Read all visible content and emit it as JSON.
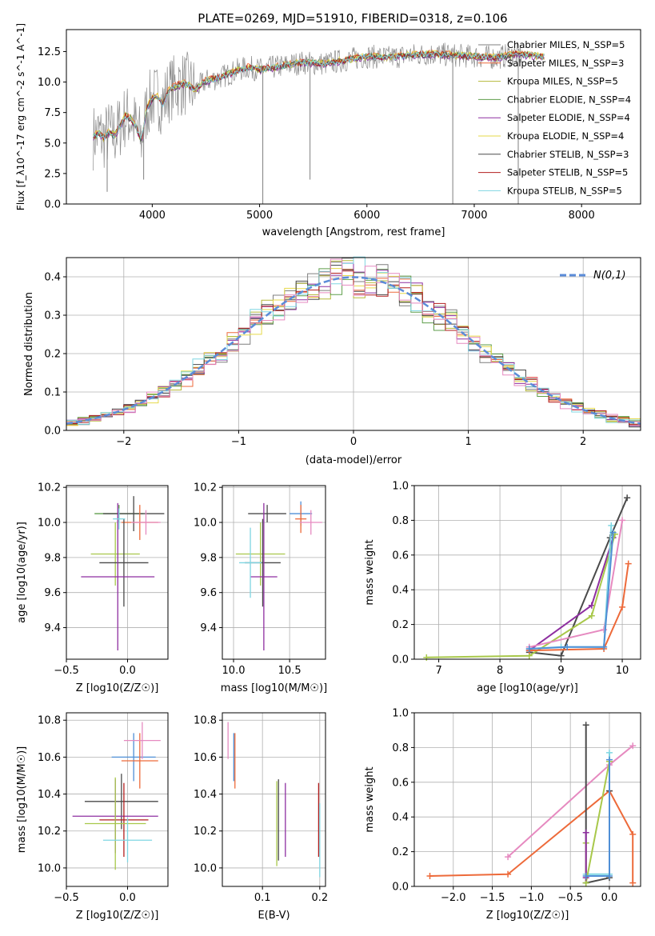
{
  "figure": {
    "title": "PLATE=0269, MJD=51910, FIBERID=0318, z=0.106",
    "colors": {
      "grey": "#7f7f7f",
      "orange": "#ed6a3a",
      "olive": "#b5b83a",
      "green": "#5f9e4b",
      "purple": "#8e2fa0",
      "yellow": "#e6d94a",
      "dark": "#4a4a4a",
      "red": "#b21e1e",
      "cyan": "#7fd6e2",
      "blue": "#4f8fd6",
      "pink": "#e68ac0",
      "lime": "#a8c84a",
      "model": "#5b8cd8",
      "grid": "#b0b0b0"
    }
  },
  "chart_data": [
    {
      "id": "spectrum",
      "type": "line",
      "xlabel": "wavelength [Angstrom, rest frame]",
      "ylabel": "Flux [f_λ10^-17 erg cm^-2 s^-1 A^-1]",
      "xlim": [
        3200,
        8550
      ],
      "ylim": [
        0,
        14.3
      ],
      "xticks": [
        4000,
        5000,
        6000,
        7000,
        8000
      ],
      "yticks": [
        0.0,
        2.5,
        5.0,
        7.5,
        10.0,
        12.5
      ],
      "legend_position": "upper-right",
      "continuum": {
        "x": [
          3450,
          3500,
          3550,
          3600,
          3650,
          3700,
          3750,
          3800,
          3850,
          3900,
          3950,
          4000,
          4050,
          4100,
          4150,
          4200,
          4300,
          4400,
          4500,
          4600,
          4700,
          4800,
          4900,
          5000,
          5200,
          5400,
          5600,
          5800,
          6000,
          6200,
          6400,
          6600,
          6800,
          7000,
          7200,
          7400,
          7600,
          7800,
          8000,
          8200
        ],
        "y": [
          5.5,
          5.8,
          5.4,
          5.9,
          5.6,
          6.4,
          7.2,
          7.0,
          6.3,
          5.2,
          7.9,
          8.6,
          8.8,
          8.2,
          9.3,
          9.6,
          9.9,
          9.4,
          10.1,
          10.3,
          10.6,
          11.0,
          11.2,
          11.0,
          11.3,
          11.6,
          11.5,
          11.8,
          12.1,
          12.0,
          12.2,
          12.3,
          12.2,
          12.1,
          12.0,
          12.3,
          12.1,
          12.0,
          11.8,
          11.6
        ]
      },
      "series": [
        {
          "name": "Chabrier MILES, N_SSP=5",
          "color": "#7f7f7f",
          "offset": 0.0
        },
        {
          "name": "Salpeter MILES, N_SSP=3",
          "color": "#ed6a3a",
          "offset": 0.1
        },
        {
          "name": "Kroupa MILES, N_SSP=5",
          "color": "#b5b83a",
          "offset": -0.05
        },
        {
          "name": "Chabrier ELODIE, N_SSP=4",
          "color": "#5f9e4b",
          "offset": 0.05
        },
        {
          "name": "Salpeter ELODIE, N_SSP=4",
          "color": "#8e2fa0",
          "offset": -0.1
        },
        {
          "name": "Kroupa ELODIE, N_SSP=4",
          "color": "#e6d94a",
          "offset": 0.08
        },
        {
          "name": "Chabrier STELIB, N_SSP=3",
          "color": "#4a4a4a",
          "offset": -0.02
        },
        {
          "name": "Salpeter STELIB, N_SSP=5",
          "color": "#b21e1e",
          "offset": 0.03
        },
        {
          "name": "Kroupa STELIB, N_SSP=5",
          "color": "#7fd6e2",
          "offset": 0.0
        }
      ]
    },
    {
      "id": "residuals",
      "type": "histogram",
      "xlabel": "(data-model)/error",
      "ylabel": "Normed distribution",
      "xlim": [
        -2.5,
        2.5
      ],
      "ylim": [
        0,
        0.45
      ],
      "xticks": [
        -2,
        -1,
        0,
        1,
        2
      ],
      "yticks": [
        0.0,
        0.1,
        0.2,
        0.3,
        0.4
      ],
      "model_label": "N(0,1)",
      "legend_position": "upper-right",
      "bin_width": 0.1
    },
    {
      "id": "Z_age",
      "type": "errorbar",
      "xlabel": "Z [log10(Z/Z☉)]",
      "ylabel": "age [log10(age/yr)]",
      "xlim": [
        -0.5,
        0.33
      ],
      "ylim": [
        9.22,
        10.21
      ],
      "xticks": [
        -0.5,
        0.0
      ],
      "yticks": [
        9.4,
        9.6,
        9.8,
        10.0,
        10.2
      ],
      "points": [
        {
          "x": -0.07,
          "y": 10.05,
          "xerr": 0.2,
          "yerr": 0.05,
          "color": "#5f9e4b"
        },
        {
          "x": 0.05,
          "y": 10.05,
          "xerr": 0.25,
          "yerr": 0.1,
          "color": "#4a4a4a"
        },
        {
          "x": 0.1,
          "y": 10.0,
          "xerr": 0.15,
          "yerr": 0.1,
          "color": "#ed6a3a"
        },
        {
          "x": 0.15,
          "y": 10.0,
          "xerr": 0.12,
          "yerr": 0.07,
          "color": "#e68ac0"
        },
        {
          "x": -0.1,
          "y": 9.82,
          "xerr": 0.2,
          "yerr": 0.18,
          "color": "#a8c84a"
        },
        {
          "x": -0.03,
          "y": 9.77,
          "xerr": 0.2,
          "yerr": 0.25,
          "color": "#4a4a4a"
        },
        {
          "x": -0.08,
          "y": 9.69,
          "xerr": 0.3,
          "yerr": 0.42,
          "color": "#8e2fa0"
        },
        {
          "x": -0.07,
          "y": 10.02,
          "xerr": 0.05,
          "yerr": 0.06,
          "color": "#7fd6e2"
        }
      ]
    },
    {
      "id": "mass_age",
      "type": "errorbar",
      "xlabel": "mass [log10(M/M☉)]",
      "ylabel": "",
      "xlim": [
        9.9,
        10.82
      ],
      "ylim": [
        9.22,
        10.21
      ],
      "xticks": [
        10.0,
        10.5
      ],
      "yticks": [
        9.4,
        9.6,
        9.8,
        10.0,
        10.2
      ],
      "points": [
        {
          "x": 10.3,
          "y": 10.05,
          "xerr": 0.17,
          "yerr": 0.05,
          "color": "#4a4a4a"
        },
        {
          "x": 10.6,
          "y": 10.05,
          "xerr": 0.1,
          "yerr": 0.07,
          "color": "#4f8fd6"
        },
        {
          "x": 10.6,
          "y": 10.02,
          "xerr": 0.05,
          "yerr": 0.08,
          "color": "#ed6a3a"
        },
        {
          "x": 10.69,
          "y": 10.0,
          "xerr": 0.1,
          "yerr": 0.07,
          "color": "#e68ac0"
        },
        {
          "x": 10.24,
          "y": 9.82,
          "xerr": 0.22,
          "yerr": 0.18,
          "color": "#a8c84a"
        },
        {
          "x": 10.26,
          "y": 9.77,
          "xerr": 0.16,
          "yerr": 0.25,
          "color": "#4a4a4a"
        },
        {
          "x": 10.27,
          "y": 9.69,
          "xerr": 0.12,
          "yerr": 0.42,
          "color": "#8e2fa0"
        },
        {
          "x": 10.15,
          "y": 9.77,
          "xerr": 0.1,
          "yerr": 0.2,
          "color": "#7fd6e2"
        }
      ]
    },
    {
      "id": "age_weight",
      "type": "line",
      "xlabel": "age [log10(age/yr)]",
      "ylabel": "mass weight",
      "xlim": [
        6.6,
        10.3
      ],
      "ylim": [
        0,
        1.0
      ],
      "xticks": [
        7,
        8,
        9,
        10
      ],
      "yticks": [
        0.0,
        0.2,
        0.4,
        0.6,
        0.8,
        1.0
      ],
      "series": [
        {
          "color": "#4a4a4a",
          "x": [
            8.48,
            9.0,
            9.8,
            10.08
          ],
          "y": [
            0.04,
            0.02,
            0.7,
            0.93
          ]
        },
        {
          "color": "#8e2fa0",
          "x": [
            8.48,
            9.5,
            9.85
          ],
          "y": [
            0.05,
            0.31,
            0.7
          ]
        },
        {
          "color": "#a8c84a",
          "x": [
            6.8,
            8.48,
            9.5,
            9.88
          ],
          "y": [
            0.01,
            0.02,
            0.25,
            0.72
          ]
        },
        {
          "color": "#e68ac0",
          "x": [
            8.48,
            9.7,
            10.0
          ],
          "y": [
            0.07,
            0.17,
            0.8
          ]
        },
        {
          "color": "#7fd6e2",
          "x": [
            8.48,
            9.0,
            9.7,
            9.82
          ],
          "y": [
            0.06,
            0.07,
            0.07,
            0.77
          ]
        },
        {
          "color": "#ed6a3a",
          "x": [
            8.48,
            9.7,
            10.0,
            10.1
          ],
          "y": [
            0.05,
            0.06,
            0.3,
            0.55
          ]
        },
        {
          "color": "#4f8fd6",
          "x": [
            8.48,
            9.1,
            9.7,
            9.85
          ],
          "y": [
            0.06,
            0.07,
            0.07,
            0.73
          ]
        }
      ]
    },
    {
      "id": "Z_mass",
      "type": "errorbar",
      "xlabel": "Z [log10(Z/Z☉)]",
      "ylabel": "mass [log10(M/M☉)]",
      "xlim": [
        -0.5,
        0.33
      ],
      "ylim": [
        9.9,
        10.84
      ],
      "xticks": [
        -0.5,
        0.0
      ],
      "yticks": [
        10.0,
        10.2,
        10.4,
        10.6,
        10.8
      ],
      "points": [
        {
          "x": 0.05,
          "y": 10.6,
          "xerr": 0.18,
          "yerr": 0.13,
          "color": "#4f8fd6"
        },
        {
          "x": 0.1,
          "y": 10.58,
          "xerr": 0.15,
          "yerr": 0.15,
          "color": "#ed6a3a"
        },
        {
          "x": 0.12,
          "y": 10.69,
          "xerr": 0.15,
          "yerr": 0.1,
          "color": "#e68ac0"
        },
        {
          "x": -0.05,
          "y": 10.36,
          "xerr": 0.3,
          "yerr": 0.15,
          "color": "#4a4a4a"
        },
        {
          "x": -0.1,
          "y": 10.28,
          "xerr": 0.35,
          "yerr": 0.2,
          "color": "#8e2fa0"
        },
        {
          "x": -0.03,
          "y": 10.26,
          "xerr": 0.2,
          "yerr": 0.2,
          "color": "#b21e1e"
        },
        {
          "x": -0.1,
          "y": 10.24,
          "xerr": 0.25,
          "yerr": 0.25,
          "color": "#a8c84a"
        },
        {
          "x": 0.0,
          "y": 10.15,
          "xerr": 0.2,
          "yerr": 0.12,
          "color": "#7fd6e2"
        }
      ]
    },
    {
      "id": "ebv_mass",
      "type": "errorbar",
      "xlabel": "E(B-V)",
      "ylabel": "",
      "xlim": [
        0.03,
        0.21
      ],
      "ylim": [
        9.9,
        10.84
      ],
      "xticks": [
        0.1,
        0.2
      ],
      "yticks": [
        10.0,
        10.2,
        10.4,
        10.6,
        10.8
      ],
      "points": [
        {
          "x": 0.04,
          "y": 10.69,
          "xerr": 0,
          "yerr": 0.1,
          "color": "#e68ac0"
        },
        {
          "x": 0.05,
          "y": 10.6,
          "xerr": 0,
          "yerr": 0.13,
          "color": "#4f8fd6"
        },
        {
          "x": 0.052,
          "y": 10.58,
          "xerr": 0,
          "yerr": 0.15,
          "color": "#ed6a3a"
        },
        {
          "x": 0.125,
          "y": 10.24,
          "xerr": 0,
          "yerr": 0.23,
          "color": "#a8c84a"
        },
        {
          "x": 0.128,
          "y": 10.26,
          "xerr": 0,
          "yerr": 0.22,
          "color": "#4a4a4a"
        },
        {
          "x": 0.14,
          "y": 10.26,
          "xerr": 0,
          "yerr": 0.2,
          "color": "#8e2fa0"
        },
        {
          "x": 0.198,
          "y": 10.26,
          "xerr": 0,
          "yerr": 0.2,
          "color": "#b21e1e"
        },
        {
          "x": 0.2,
          "y": 10.15,
          "xerr": 0,
          "yerr": 0.2,
          "color": "#7fd6e2"
        }
      ]
    },
    {
      "id": "Z_weight",
      "type": "line",
      "xlabel": "Z [log10(Z/Z☉)]",
      "ylabel": "mass weight",
      "xlim": [
        -2.5,
        0.4
      ],
      "ylim": [
        0,
        1.0
      ],
      "xticks": [
        -2.0,
        -1.5,
        -1.0,
        -0.5,
        0.0
      ],
      "yticks": [
        0.0,
        0.2,
        0.4,
        0.6,
        0.8,
        1.0
      ],
      "series": [
        {
          "color": "#e68ac0",
          "x": [
            -1.3,
            0.0,
            0.3
          ],
          "y": [
            0.17,
            0.7,
            0.81
          ]
        },
        {
          "color": "#ed6a3a",
          "x": [
            -2.3,
            -1.3,
            0.0,
            0.3,
            0.3
          ],
          "y": [
            0.06,
            0.07,
            0.55,
            0.3,
            0.02
          ]
        },
        {
          "color": "#4a4a4a",
          "x": [
            -0.3,
            -0.3,
            0.0,
            0.0
          ],
          "y": [
            0.93,
            0.02,
            0.05,
            0.55
          ]
        },
        {
          "color": "#7fd6e2",
          "x": [
            -0.3,
            0.0,
            0.0
          ],
          "y": [
            0.07,
            0.07,
            0.77
          ]
        },
        {
          "color": "#a8c84a",
          "x": [
            -0.3,
            -0.3,
            0.0
          ],
          "y": [
            0.25,
            0.02,
            0.72
          ]
        },
        {
          "color": "#8e2fa0",
          "x": [
            -0.3,
            -0.3
          ],
          "y": [
            0.31,
            0.05
          ]
        },
        {
          "color": "#4f8fd6",
          "x": [
            -0.3,
            0.0,
            0.0
          ],
          "y": [
            0.06,
            0.06,
            0.73
          ]
        }
      ]
    }
  ]
}
